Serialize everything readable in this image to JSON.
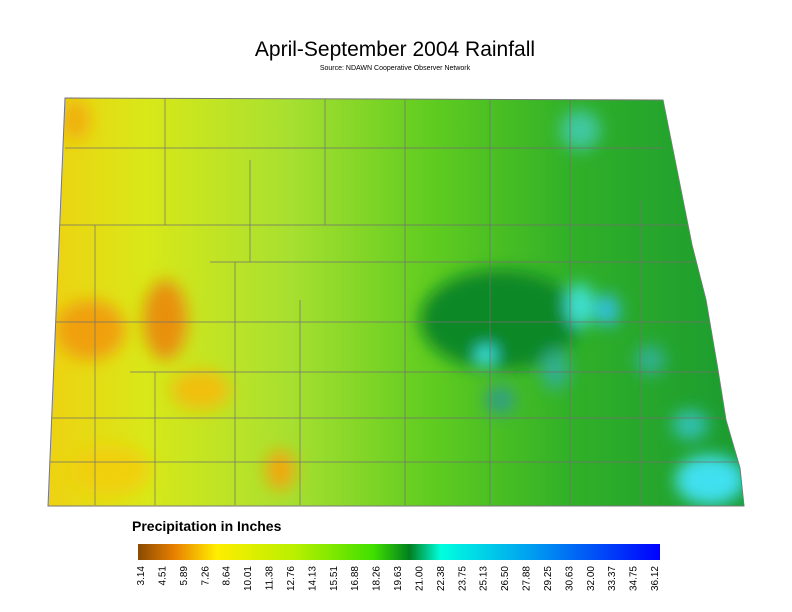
{
  "header": {
    "title": "April-September 2004 Rainfall",
    "source": "Source: NDAWN Cooperative Observer Network"
  },
  "legend": {
    "title": "Precipitation in Inches",
    "labels": [
      "3.14",
      "4.51",
      "5.89",
      "7.26",
      "8.64",
      "10.01",
      "11.38",
      "12.76",
      "14.13",
      "15.51",
      "16.88",
      "18.26",
      "19.63",
      "21.00",
      "22.38",
      "23.75",
      "25.13",
      "26.50",
      "27.88",
      "29.25",
      "30.63",
      "32.00",
      "33.37",
      "34.75",
      "36.12"
    ]
  }
}
